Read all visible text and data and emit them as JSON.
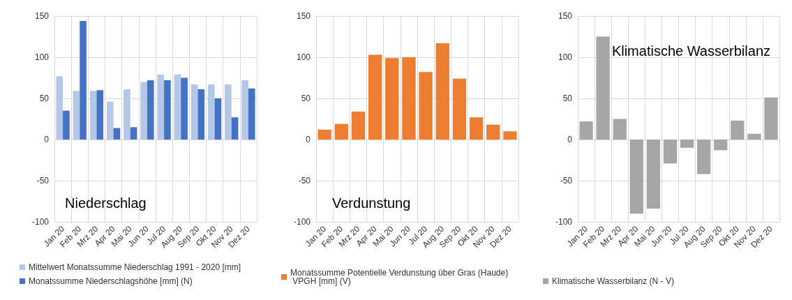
{
  "chart_data": [
    {
      "type": "bar",
      "title": "Niederschlag",
      "categories": [
        "Jan 20",
        "Feb 20",
        "Mrz 20",
        "Apr 20",
        "Mai 20",
        "Jun 20",
        "Jul 20",
        "Aug 20",
        "Sep 20",
        "Okt 20",
        "Nov 20",
        "Dez 20"
      ],
      "series": [
        {
          "name": "Mittelwert Monatssumme Niederschlag 1991 - 2020 [mm]",
          "color": "#b4c7e7",
          "values": [
            77,
            59,
            59,
            46,
            61,
            70,
            79,
            79,
            67,
            67,
            67,
            72
          ]
        },
        {
          "name": "Monatssumme Niederschlagshöhe [mm] (N)",
          "color": "#4472c4",
          "values": [
            35,
            144,
            60,
            14,
            15,
            72,
            72,
            75,
            61,
            50,
            27,
            62
          ]
        }
      ],
      "ylim": [
        -100,
        150
      ],
      "yticks": [
        -100,
        -50,
        0,
        50,
        100,
        150
      ],
      "grid": true,
      "legend": "bottom"
    },
    {
      "type": "bar",
      "title": "Verdunstung",
      "categories": [
        "Jan 20",
        "Feb 20",
        "Mrz 20",
        "Apr 20",
        "Mai 20",
        "Jun 20",
        "Jul 20",
        "Aug 20",
        "Sep 20",
        "Okt 20",
        "Nov 20",
        "Dez 20"
      ],
      "series": [
        {
          "name": "Monatssumme Potentielle Verdunstung über Gras (Haude) VPGH [mm] (V)",
          "color": "#ed7d31",
          "values": [
            12,
            19,
            34,
            103,
            99,
            100,
            82,
            117,
            74,
            27,
            18,
            10
          ]
        }
      ],
      "ylim": [
        -100,
        150
      ],
      "yticks": [
        -100,
        -50,
        0,
        50,
        100,
        150
      ],
      "grid": true,
      "legend": "bottom"
    },
    {
      "type": "bar",
      "title": "Klimatische Wasserbilanz",
      "categories": [
        "Jan 20",
        "Feb 20",
        "Mrz 20",
        "Apr 20",
        "Mai 20",
        "Jun 20",
        "Jul 20",
        "Aug 20",
        "Sep 20",
        "Okt 20",
        "Nov 20",
        "Dez 20"
      ],
      "series": [
        {
          "name": "Klimatische Wasserbilanz (N - V)",
          "color": "#a5a5a5",
          "values": [
            22,
            125,
            25,
            -90,
            -84,
            -29,
            -10,
            -42,
            -13,
            23,
            7,
            51
          ]
        }
      ],
      "ylim": [
        -100,
        150
      ],
      "yticks": [
        -100,
        -50,
        0,
        50,
        100,
        150
      ],
      "grid": true,
      "legend": "bottom"
    }
  ]
}
